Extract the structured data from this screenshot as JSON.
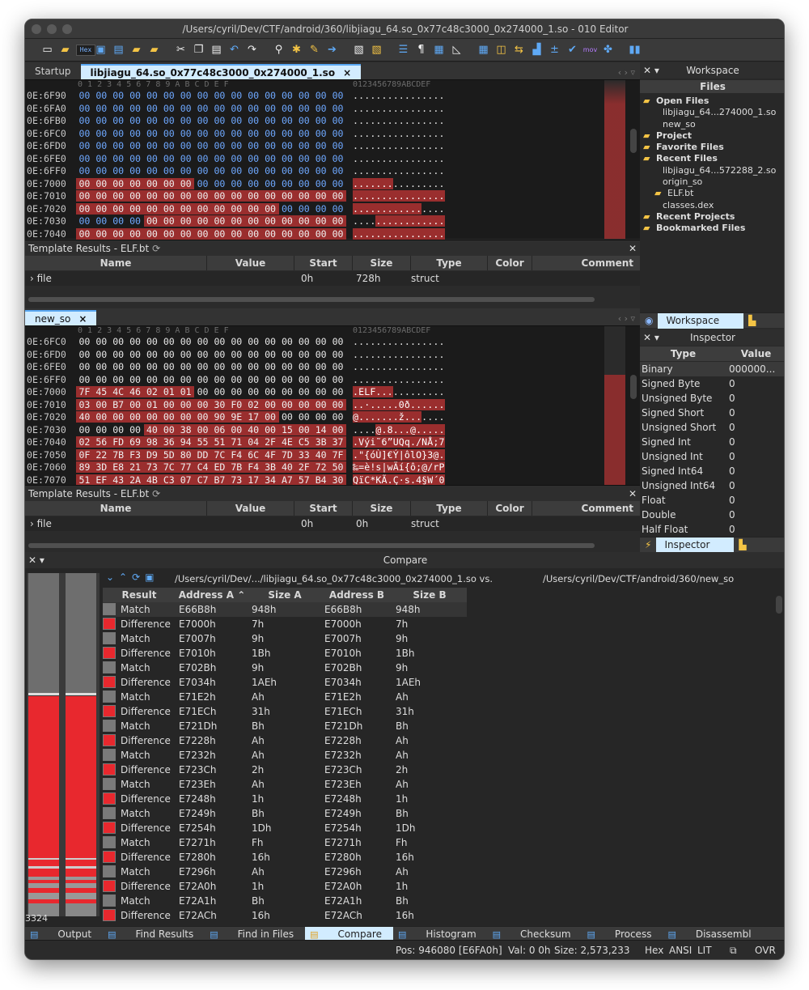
{
  "window": {
    "title": "/Users/cyril/Dev/CTF/android/360/libjiagu_64.so_0x77c48c3000_0x274000_1.so - 010 Editor"
  },
  "toolbar": {
    "hex_label": "Hex"
  },
  "colors": {
    "accent": "#59a7f2",
    "diff_red": "#e8282e",
    "match_gray": "#7a7a7a",
    "diff_bg": "#9a2e2e"
  },
  "editor1": {
    "tabs": [
      {
        "label": "Startup"
      },
      {
        "label": "libjiagu_64.so_0x77c48c3000_0x274000_1.so",
        "close": "×"
      }
    ],
    "col_header": "0  1  2  3  4  5  6  7  8  9  A  B  C  D  E  F",
    "ascii_header": "0123456789ABCDEF",
    "rows": [
      {
        "addr": "0E:6F90",
        "hex": "00 00 00 00 00 00 00 00 00 00 00 00 00 00 00 00",
        "ascii": "................",
        "diff": []
      },
      {
        "addr": "0E:6FA0",
        "hex": "00 00 00 00 00 00 00 00 00 00 00 00 00 00 00 00",
        "ascii": "................",
        "diff": []
      },
      {
        "addr": "0E:6FB0",
        "hex": "00 00 00 00 00 00 00 00 00 00 00 00 00 00 00 00",
        "ascii": "................",
        "diff": []
      },
      {
        "addr": "0E:6FC0",
        "hex": "00 00 00 00 00 00 00 00 00 00 00 00 00 00 00 00",
        "ascii": "................",
        "diff": []
      },
      {
        "addr": "0E:6FD0",
        "hex": "00 00 00 00 00 00 00 00 00 00 00 00 00 00 00 00",
        "ascii": "................",
        "diff": []
      },
      {
        "addr": "0E:6FE0",
        "hex": "00 00 00 00 00 00 00 00 00 00 00 00 00 00 00 00",
        "ascii": "................",
        "diff": []
      },
      {
        "addr": "0E:6FF0",
        "hex": "00 00 00 00 00 00 00 00 00 00 00 00 00 00 00 00",
        "ascii": "................",
        "diff": []
      },
      {
        "addr": "0E:7000",
        "hex": "00 00 00 00 00 00 00 00 00 00 00 00 00 00 00 00",
        "ascii": "................",
        "diff": [
          0,
          1,
          2,
          3,
          4,
          5,
          6
        ]
      },
      {
        "addr": "0E:7010",
        "hex": "00 00 00 00 00 00 00 00 00 00 00 00 00 00 00 00",
        "ascii": "................",
        "diff": [
          0,
          1,
          2,
          3,
          4,
          5,
          6,
          7,
          8,
          9,
          10,
          11,
          12,
          13,
          14,
          15
        ]
      },
      {
        "addr": "0E:7020",
        "hex": "00 00 00 00 00 00 00 00 00 00 00 00 00 00 00 00",
        "ascii": "................",
        "diff": [
          0,
          1,
          2,
          3,
          4,
          5,
          6,
          7,
          8,
          9,
          10,
          11
        ]
      },
      {
        "addr": "0E:7030",
        "hex": "00 00 00 00 00 00 00 00 00 00 00 00 00 00 00 00",
        "ascii": "................",
        "diff": [
          4,
          5,
          6,
          7,
          8,
          9,
          10,
          11,
          12,
          13,
          14,
          15
        ]
      },
      {
        "addr": "0E:7040",
        "hex": "00 00 00 00 00 00 00 00 00 00 00 00 00 00 00 00",
        "ascii": "................",
        "diff": [
          0,
          1,
          2,
          3,
          4,
          5,
          6,
          7,
          8,
          9,
          10,
          11,
          12,
          13,
          14,
          15
        ]
      }
    ]
  },
  "template1": {
    "title": "Template Results - ELF.bt",
    "columns": [
      "Name",
      "Value",
      "Start",
      "Size",
      "Type",
      "Color",
      "Comment"
    ],
    "row": {
      "name": "file",
      "value": "",
      "start": "0h",
      "size": "728h",
      "type": "struct"
    }
  },
  "editor2": {
    "tab": {
      "label": "new_so",
      "close": "×"
    },
    "rows": [
      {
        "addr": "0E:6FC0",
        "hex": "00 00 00 00 00 00 00 00 00 00 00 00 00 00 00 00",
        "ascii": "................",
        "diff": []
      },
      {
        "addr": "0E:6FD0",
        "hex": "00 00 00 00 00 00 00 00 00 00 00 00 00 00 00 00",
        "ascii": "................",
        "diff": []
      },
      {
        "addr": "0E:6FE0",
        "hex": "00 00 00 00 00 00 00 00 00 00 00 00 00 00 00 00",
        "ascii": "................",
        "diff": []
      },
      {
        "addr": "0E:6FF0",
        "hex": "00 00 00 00 00 00 00 00 00 00 00 00 00 00 00 00",
        "ascii": "................",
        "diff": []
      },
      {
        "addr": "0E:7000",
        "hex": "7F 45 4C 46 02 01 01 00 00 00 00 00 00 00 00 00",
        "ascii": ".ELF............",
        "diff": [
          0,
          1,
          2,
          3,
          4,
          5,
          6
        ]
      },
      {
        "addr": "0E:7010",
        "hex": "03 00 B7 00 01 00 00 00 30 F0 02 00 00 00 00 00",
        "ascii": "..·.....0ð......",
        "diff": [
          0,
          1,
          2,
          3,
          4,
          5,
          6,
          7,
          8,
          9,
          10,
          11,
          12,
          13,
          14,
          15
        ]
      },
      {
        "addr": "0E:7020",
        "hex": "40 00 00 00 00 00 00 00 90 9E 17 00 00 00 00 00",
        "ascii": "@.......ž.......",
        "diff": [
          0,
          1,
          2,
          3,
          4,
          5,
          6,
          7,
          8,
          9,
          10,
          11
        ]
      },
      {
        "addr": "0E:7030",
        "hex": "00 00 00 00 40 00 38 00 06 00 40 00 15 00 14 00",
        "ascii": "....@.8...@.....",
        "diff": [
          4,
          5,
          6,
          7,
          8,
          9,
          10,
          11,
          12,
          13,
          14,
          15
        ]
      },
      {
        "addr": "0E:7040",
        "hex": "02 56 FD 69 98 36 94 55 51 71 04 2F 4E C5 3B 37",
        "ascii": ".Výi˜6”UQq./NÅ;7",
        "diff": [
          0,
          1,
          2,
          3,
          4,
          5,
          6,
          7,
          8,
          9,
          10,
          11,
          12,
          13,
          14,
          15
        ]
      },
      {
        "addr": "0E:7050",
        "hex": "0F 22 7B F3 D9 5D 80 DD 7C F4 6C 4F 7D 33 40 7F",
        "ascii": ".\"{óÙ]€Ý|ôlO}3@.",
        "diff": [
          0,
          1,
          2,
          3,
          4,
          5,
          6,
          7,
          8,
          9,
          10,
          11,
          12,
          13,
          14,
          15
        ]
      },
      {
        "addr": "0E:7060",
        "hex": "89 3D E8 21 73 7C 77 C4 ED 7B F4 3B 40 2F 72 50",
        "ascii": "‰=è!s|wÄí{ô;@/rP",
        "diff": [
          0,
          1,
          2,
          3,
          4,
          5,
          6,
          7,
          8,
          9,
          10,
          11,
          12,
          13,
          14,
          15
        ]
      },
      {
        "addr": "0E:7070",
        "hex": "51 EF 43 2A 4B C3 07 C7 B7 73 17 34 A7 57 B4 30",
        "ascii": "QïC*KÃ.Ç·s.4§W´0",
        "diff": [
          0,
          1,
          2,
          3,
          4,
          5,
          6,
          7,
          8,
          9,
          10,
          11,
          12,
          13,
          14,
          15
        ]
      }
    ]
  },
  "template2": {
    "title": "Template Results - ELF.bt",
    "columns": [
      "Name",
      "Value",
      "Start",
      "Size",
      "Type",
      "Color",
      "Comment"
    ],
    "row": {
      "name": "file",
      "value": "",
      "start": "0h",
      "size": "0h",
      "type": "struct"
    }
  },
  "workspace": {
    "title": "Workspace",
    "band": "Files",
    "tree": [
      {
        "label": "Open Files",
        "folder": true,
        "level": 0
      },
      {
        "label": "libjiagu_64...274000_1.so",
        "level": 1
      },
      {
        "label": "new_so",
        "level": 1
      },
      {
        "label": "Project",
        "folder": true,
        "level": 0
      },
      {
        "label": "Favorite Files",
        "folder": true,
        "level": 0
      },
      {
        "label": "Recent Files",
        "folder": true,
        "level": 0
      },
      {
        "label": "libjiagu_64...572288_2.so",
        "level": 1
      },
      {
        "label": "origin_so",
        "level": 1
      },
      {
        "label": "ELF.bt",
        "level": 1,
        "icon": true
      },
      {
        "label": "classes.dex",
        "level": 1
      },
      {
        "label": "Recent Projects",
        "folder": true,
        "level": 0
      },
      {
        "label": "Bookmarked Files",
        "folder": true,
        "level": 0
      }
    ],
    "tab_label": "Workspace"
  },
  "inspector": {
    "title": "Inspector",
    "columns": [
      "Type",
      "Value"
    ],
    "rows": [
      {
        "type": "Binary",
        "value": "000000..."
      },
      {
        "type": "Signed Byte",
        "value": "0"
      },
      {
        "type": "Unsigned Byte",
        "value": "0"
      },
      {
        "type": "Signed Short",
        "value": "0"
      },
      {
        "type": "Unsigned Short",
        "value": "0"
      },
      {
        "type": "Signed Int",
        "value": "0"
      },
      {
        "type": "Unsigned Int",
        "value": "0"
      },
      {
        "type": "Signed Int64",
        "value": "0"
      },
      {
        "type": "Unsigned Int64",
        "value": "0"
      },
      {
        "type": "Float",
        "value": "0"
      },
      {
        "type": "Double",
        "value": "0"
      },
      {
        "type": "Half Float",
        "value": "0"
      }
    ],
    "tab_label": "Inspector"
  },
  "compare": {
    "title": "Compare",
    "path_a": "/Users/cyril/Dev/.../libjiagu_64.so_0x77c48c3000_0x274000_1.so vs.",
    "path_b": "/Users/cyril/Dev/CTF/android/360/new_so",
    "columns": [
      "Result",
      "Address A",
      "Size A",
      "Address B",
      "Size B"
    ],
    "count_label": "3324",
    "rows": [
      {
        "result": "Match",
        "addr_a": "E66B8h",
        "size_a": "948h",
        "addr_b": "E66B8h",
        "size_b": "948h"
      },
      {
        "result": "Difference",
        "addr_a": "E7000h",
        "size_a": "7h",
        "addr_b": "E7000h",
        "size_b": "7h"
      },
      {
        "result": "Match",
        "addr_a": "E7007h",
        "size_a": "9h",
        "addr_b": "E7007h",
        "size_b": "9h"
      },
      {
        "result": "Difference",
        "addr_a": "E7010h",
        "size_a": "1Bh",
        "addr_b": "E7010h",
        "size_b": "1Bh"
      },
      {
        "result": "Match",
        "addr_a": "E702Bh",
        "size_a": "9h",
        "addr_b": "E702Bh",
        "size_b": "9h"
      },
      {
        "result": "Difference",
        "addr_a": "E7034h",
        "size_a": "1AEh",
        "addr_b": "E7034h",
        "size_b": "1AEh"
      },
      {
        "result": "Match",
        "addr_a": "E71E2h",
        "size_a": "Ah",
        "addr_b": "E71E2h",
        "size_b": "Ah"
      },
      {
        "result": "Difference",
        "addr_a": "E71ECh",
        "size_a": "31h",
        "addr_b": "E71ECh",
        "size_b": "31h"
      },
      {
        "result": "Match",
        "addr_a": "E721Dh",
        "size_a": "Bh",
        "addr_b": "E721Dh",
        "size_b": "Bh"
      },
      {
        "result": "Difference",
        "addr_a": "E7228h",
        "size_a": "Ah",
        "addr_b": "E7228h",
        "size_b": "Ah"
      },
      {
        "result": "Match",
        "addr_a": "E7232h",
        "size_a": "Ah",
        "addr_b": "E7232h",
        "size_b": "Ah"
      },
      {
        "result": "Difference",
        "addr_a": "E723Ch",
        "size_a": "2h",
        "addr_b": "E723Ch",
        "size_b": "2h"
      },
      {
        "result": "Match",
        "addr_a": "E723Eh",
        "size_a": "Ah",
        "addr_b": "E723Eh",
        "size_b": "Ah"
      },
      {
        "result": "Difference",
        "addr_a": "E7248h",
        "size_a": "1h",
        "addr_b": "E7248h",
        "size_b": "1h"
      },
      {
        "result": "Match",
        "addr_a": "E7249h",
        "size_a": "Bh",
        "addr_b": "E7249h",
        "size_b": "Bh"
      },
      {
        "result": "Difference",
        "addr_a": "E7254h",
        "size_a": "1Dh",
        "addr_b": "E7254h",
        "size_b": "1Dh"
      },
      {
        "result": "Match",
        "addr_a": "E7271h",
        "size_a": "Fh",
        "addr_b": "E7271h",
        "size_b": "Fh"
      },
      {
        "result": "Difference",
        "addr_a": "E7280h",
        "size_a": "16h",
        "addr_b": "E7280h",
        "size_b": "16h"
      },
      {
        "result": "Match",
        "addr_a": "E7296h",
        "size_a": "Ah",
        "addr_b": "E7296h",
        "size_b": "Ah"
      },
      {
        "result": "Difference",
        "addr_a": "E72A0h",
        "size_a": "1h",
        "addr_b": "E72A0h",
        "size_b": "1h"
      },
      {
        "result": "Match",
        "addr_a": "E72A1h",
        "size_a": "Bh",
        "addr_b": "E72A1h",
        "size_b": "Bh"
      },
      {
        "result": "Difference",
        "addr_a": "E72ACh",
        "size_a": "16h",
        "addr_b": "E72ACh",
        "size_b": "16h"
      }
    ]
  },
  "bottom_tabs": [
    {
      "label": "Output",
      "icon": "output-icon"
    },
    {
      "label": "Find Results",
      "icon": "find-icon"
    },
    {
      "label": "Find in Files",
      "icon": "find-in-files-icon"
    },
    {
      "label": "Compare",
      "icon": "compare-icon",
      "active": true
    },
    {
      "label": "Histogram",
      "icon": "histogram-icon"
    },
    {
      "label": "Checksum",
      "icon": "checksum-icon"
    },
    {
      "label": "Process",
      "icon": "process-icon"
    },
    {
      "label": "Disassembl",
      "icon": "disassembler-icon"
    }
  ],
  "status": {
    "pos": "Pos: 946080 [E6FA0h]",
    "val": "Val: 0 0h",
    "size": "Size: 2,573,233",
    "mode": "Hex",
    "encoding": "ANSI",
    "endian": "LIT",
    "ovr": "OVR"
  }
}
